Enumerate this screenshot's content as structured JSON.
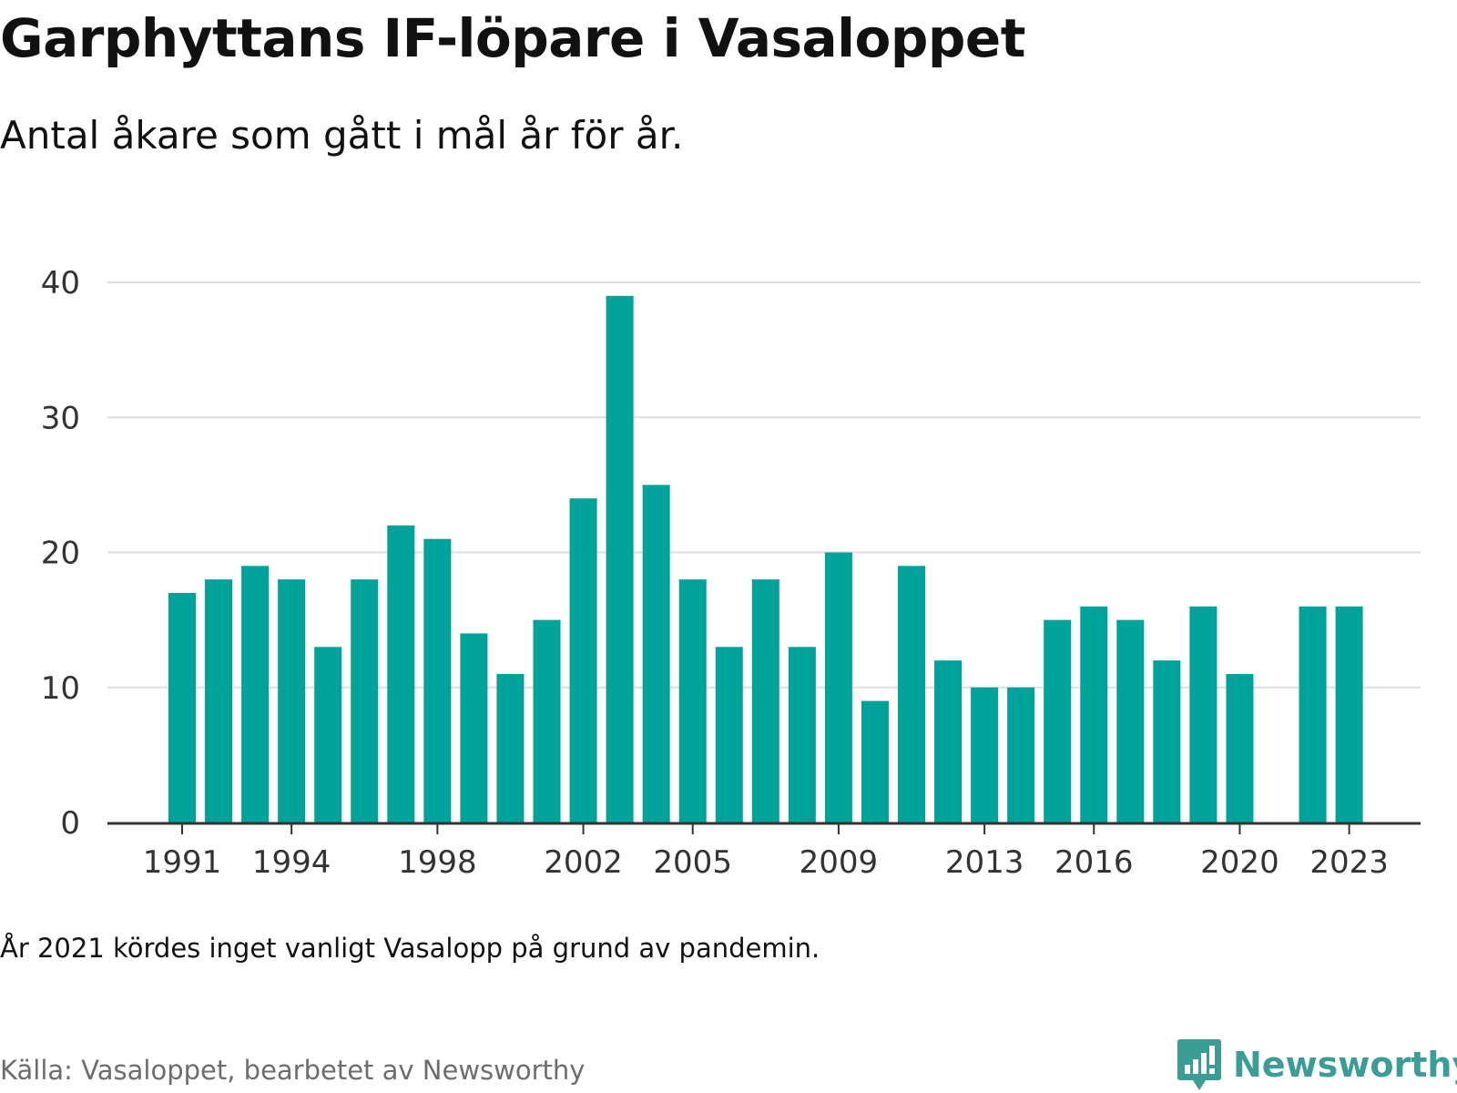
{
  "title": "Garphyttans IF-löpare i Vasaloppet",
  "subtitle": "Antal åkare som gått i mål år för år.",
  "note": "År 2021 kördes inget vanligt Vasalopp på grund av pandemin.",
  "source": "Källa: Vasaloppet, bearbetet av Newsworthy",
  "logo": {
    "text": "Newsworthy",
    "icon": "newsworthy-chart-bubble-icon",
    "color": "#3b9e96"
  },
  "colors": {
    "bar": "#00a39a",
    "grid": "#dddddd",
    "axis": "#333333"
  },
  "chart_data": {
    "type": "bar",
    "title": "Garphyttans IF-löpare i Vasaloppet",
    "subtitle": "Antal åkare som gått i mål år för år.",
    "x": [
      1991,
      1992,
      1993,
      1994,
      1995,
      1996,
      1997,
      1998,
      1999,
      2000,
      2001,
      2002,
      2003,
      2004,
      2005,
      2006,
      2007,
      2008,
      2009,
      2010,
      2011,
      2012,
      2013,
      2014,
      2015,
      2016,
      2017,
      2018,
      2019,
      2020,
      2021,
      2022,
      2023
    ],
    "values": [
      17,
      18,
      19,
      18,
      13,
      18,
      22,
      21,
      14,
      11,
      15,
      24,
      39,
      25,
      18,
      13,
      18,
      13,
      20,
      9,
      19,
      12,
      10,
      10,
      15,
      16,
      15,
      12,
      16,
      11,
      null,
      16,
      16
    ],
    "x_tick_labels": [
      "1991",
      "1994",
      "1998",
      "2002",
      "2005",
      "2009",
      "2013",
      "2016",
      "2020",
      "2023"
    ],
    "y_ticks": [
      0,
      10,
      20,
      30,
      40
    ],
    "ylim": [
      0,
      40
    ],
    "xlabel": "",
    "ylabel": "",
    "grid": "horizontal",
    "legend": "none"
  }
}
